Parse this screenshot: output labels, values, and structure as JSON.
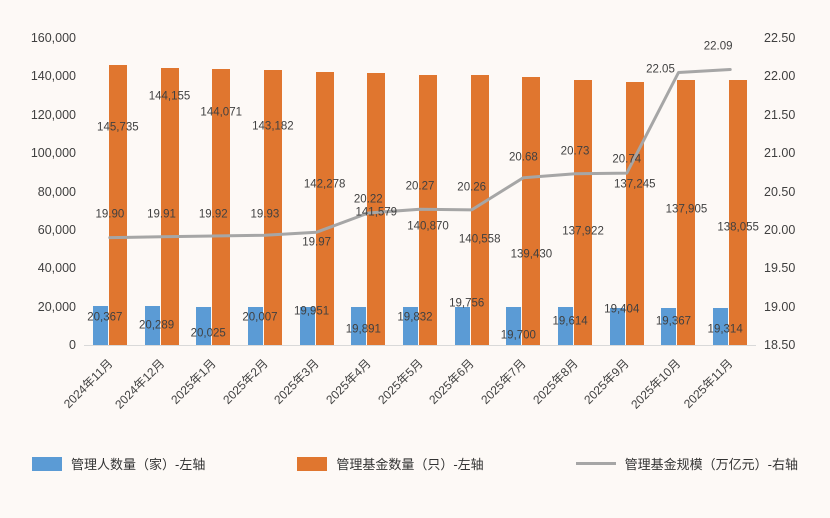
{
  "background": "#FDF9F6",
  "chart_data": {
    "type": "bar",
    "categories": [
      "2024年11月",
      "2024年12月",
      "2025年1月",
      "2025年2月",
      "2025年3月",
      "2025年4月",
      "2025年5月",
      "2025年6月",
      "2025年7月",
      "2025年8月",
      "2025年9月",
      "2025年10月",
      "2025年11月"
    ],
    "series": [
      {
        "name": "管理人数量（家）-左轴",
        "type": "bar",
        "axis": "left",
        "color": "#5B9BD5",
        "values": [
          20367,
          20289,
          20025,
          20007,
          19951,
          19891,
          19832,
          19756,
          19700,
          19614,
          19404,
          19367,
          19314
        ]
      },
      {
        "name": "管理基金数量（只）-左轴",
        "type": "bar",
        "axis": "left",
        "color": "#E0762F",
        "values": [
          145735,
          144155,
          144071,
          143182,
          142278,
          141579,
          140870,
          140558,
          139430,
          137922,
          137245,
          137905,
          138055
        ]
      },
      {
        "name": "管理基金规模（万亿元）-右轴",
        "type": "line",
        "axis": "right",
        "color": "#A6A6A6",
        "values": [
          19.9,
          19.91,
          19.92,
          19.93,
          19.97,
          20.22,
          20.27,
          20.26,
          20.68,
          20.73,
          20.74,
          22.05,
          22.09
        ]
      }
    ],
    "left_axis": {
      "min": 0,
      "max": 160000,
      "step": 20000,
      "ticks": [
        "160,000",
        "140,000",
        "120,000",
        "100,000",
        "80,000",
        "60,000",
        "40,000",
        "20,000",
        "0"
      ]
    },
    "right_axis": {
      "min": 18.5,
      "max": 22.5,
      "step": 0.5,
      "ticks": [
        "22.50",
        "22.00",
        "21.50",
        "21.00",
        "20.50",
        "20.00",
        "19.50",
        "19.00",
        "18.50"
      ]
    },
    "legend_position": "bottom",
    "grid": "off"
  }
}
